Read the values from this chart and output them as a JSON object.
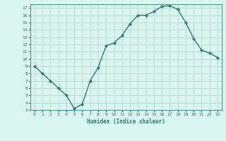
{
  "x": [
    0,
    1,
    2,
    3,
    4,
    5,
    6,
    7,
    8,
    9,
    10,
    11,
    12,
    13,
    14,
    15,
    16,
    17,
    18,
    19,
    20,
    21,
    22,
    23
  ],
  "y": [
    9.0,
    8.0,
    7.0,
    6.0,
    5.0,
    3.2,
    3.8,
    7.0,
    8.8,
    11.8,
    12.2,
    13.2,
    14.8,
    16.0,
    16.0,
    16.5,
    17.2,
    17.3,
    16.8,
    15.0,
    12.8,
    11.2,
    10.8,
    10.2
  ],
  "xlabel": "Humidex (Indice chaleur)",
  "line_color": "#2e7d6e",
  "marker": "D",
  "marker_size": 2.0,
  "bg_color": "#d9f5f0",
  "grid_color": "#b8d8d3",
  "tick_color": "#2e7d6e",
  "label_color": "#2e7d6e",
  "xlim": [
    -0.5,
    23.5
  ],
  "ylim": [
    3,
    17.5
  ],
  "yticks": [
    3,
    4,
    5,
    6,
    7,
    8,
    9,
    10,
    11,
    12,
    13,
    14,
    15,
    16,
    17
  ],
  "xticks": [
    0,
    1,
    2,
    3,
    4,
    5,
    6,
    7,
    8,
    9,
    10,
    11,
    12,
    13,
    14,
    15,
    16,
    17,
    18,
    19,
    20,
    21,
    22,
    23
  ]
}
